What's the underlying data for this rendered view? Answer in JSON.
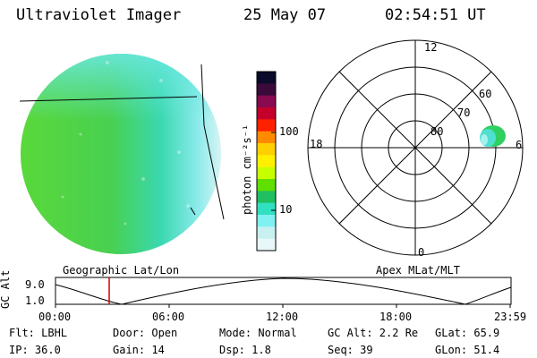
{
  "header": {
    "instrument": "Ultraviolet Imager",
    "date": "25 May 07",
    "time": "02:54:51 UT"
  },
  "colorbar": {
    "unit_label": "photon cm⁻²s⁻¹",
    "ticks": [
      "100",
      "10"
    ],
    "colors": [
      "#0a0a2a",
      "#3a0a3a",
      "#8a0a50",
      "#c4002a",
      "#ff2000",
      "#ff8a00",
      "#ffd000",
      "#fff000",
      "#c8ff00",
      "#60e000",
      "#20c060",
      "#30e0c0",
      "#80f0f0",
      "#c8f0f0",
      "#e8f8f8"
    ]
  },
  "polar": {
    "labels": {
      "top": "12",
      "left": "18",
      "right": "6",
      "bottom": "0"
    },
    "rings": [
      "80",
      "70",
      "60"
    ]
  },
  "timeline": {
    "left_caption": "Geographic Lat/Lon",
    "right_caption": "Apex MLat/MLT",
    "axis_label": "GC Alt",
    "y_max": "9.0",
    "y_min": "1.0",
    "x_ticks": [
      "00:00",
      "06:00",
      "12:00",
      "18:00",
      "23:59"
    ],
    "marker_color": "#d00000"
  },
  "info": {
    "flt": "Flt: LBHL",
    "ip": "IP: 36.0",
    "door": "Door: Open",
    "gain": "Gain: 14",
    "mode": "Mode: Normal",
    "dsp": "Dsp:    1.8",
    "gcalt": "GC Alt: 2.2 Re",
    "seq": "Seq: 39",
    "glat": "GLat:  65.9",
    "glon": "GLon:  51.4"
  }
}
